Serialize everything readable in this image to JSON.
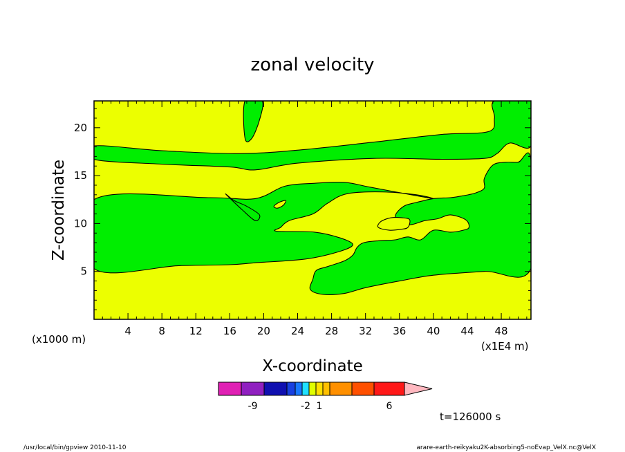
{
  "chart_data": {
    "type": "contour",
    "title": "zonal velocity",
    "xlabel": "X-coordinate",
    "ylabel": "Z-coordinate",
    "x_unit_note": "(x1E4 m)",
    "y_unit_note": "(x1000 m)",
    "xlim": [
      0,
      51.5
    ],
    "ylim": [
      0,
      22.8
    ],
    "x_ticks": [
      4,
      8,
      12,
      16,
      20,
      24,
      28,
      32,
      36,
      40,
      44,
      48
    ],
    "y_ticks": [
      5,
      10,
      15,
      20
    ],
    "time_label": "t=126000 s",
    "colorbar": {
      "tick_labels": [
        {
          "text": "-9",
          "index": 1
        },
        {
          "text": "-2",
          "index": 5
        },
        {
          "text": "1",
          "index": 7
        },
        {
          "text": "6",
          "index": 11
        }
      ],
      "colors": [
        "#e020b4",
        "#9020c0",
        "#1010b0",
        "#1840e0",
        "#1878ff",
        "#20e0ff",
        "#e0ff00",
        "#ffe000",
        "#ffc000",
        "#ff9000",
        "#ff5000",
        "#ff1818",
        "#ff8080",
        "#ffb8c0"
      ]
    },
    "region_colors": {
      "positive": "#ecff00",
      "negative": "#00ee00"
    },
    "regions": [
      {
        "sign": "negative",
        "points": [
          [
            17.8,
            22.8
          ],
          [
            19.8,
            22.8
          ],
          [
            19.5,
            20.8
          ],
          [
            18.6,
            18.9
          ],
          [
            17.8,
            18.9
          ]
        ]
      },
      {
        "sign": "negative",
        "points": [
          [
            0,
            18.1
          ],
          [
            8,
            17.6
          ],
          [
            17.2,
            17.3
          ],
          [
            24.5,
            17.7
          ],
          [
            33,
            18.5
          ],
          [
            41,
            19.3
          ],
          [
            46.5,
            19.6
          ],
          [
            47.2,
            21
          ],
          [
            47.2,
            22.8
          ],
          [
            51.5,
            22.8
          ],
          [
            51.5,
            18.1
          ],
          [
            49,
            18.4
          ],
          [
            47.5,
            17.3
          ],
          [
            46,
            16.8
          ],
          [
            41,
            16.7
          ],
          [
            33,
            16.8
          ],
          [
            24,
            16.3
          ],
          [
            19,
            15.6
          ],
          [
            16,
            15.9
          ],
          [
            8,
            16.2
          ],
          [
            0,
            16.7
          ]
        ]
      },
      {
        "sign": "negative",
        "points": [
          [
            51.5,
            16.6
          ],
          [
            50,
            16.4
          ],
          [
            48.2,
            15
          ],
          [
            47,
            14.3
          ],
          [
            48,
            13.2
          ],
          [
            51.5,
            12.6
          ]
        ]
      },
      {
        "sign": "negative",
        "points": [
          [
            0,
            12.5
          ],
          [
            13.5,
            12.7
          ],
          [
            19,
            12.6
          ],
          [
            22.5,
            13.9
          ],
          [
            26,
            14.2
          ],
          [
            29.5,
            14.3
          ],
          [
            32.5,
            13.8
          ],
          [
            38,
            12.9
          ],
          [
            40,
            12.6
          ],
          [
            38,
            13
          ],
          [
            34,
            13.3
          ],
          [
            29.8,
            13.1
          ],
          [
            27.5,
            12.1
          ],
          [
            25.8,
            11
          ],
          [
            23,
            10.3
          ],
          [
            22,
            9.6
          ],
          [
            21.5,
            9.2
          ],
          [
            26,
            9.1
          ],
          [
            29,
            8.5
          ],
          [
            30.5,
            7.8
          ],
          [
            29,
            7.1
          ],
          [
            25,
            6.3
          ],
          [
            19,
            5.9
          ],
          [
            16,
            5.7
          ],
          [
            10,
            5.6
          ],
          [
            0,
            5.3
          ]
        ]
      },
      {
        "sign": "negative",
        "points": [
          [
            15.5,
            13.1
          ],
          [
            16.3,
            12.4
          ],
          [
            17.5,
            11.4
          ],
          [
            19,
            10.3
          ],
          [
            19.5,
            10.9
          ],
          [
            18,
            11.8
          ],
          [
            16.5,
            12.4
          ]
        ]
      },
      {
        "sign": "negative",
        "points": [
          [
            26.2,
            5.1
          ],
          [
            27.5,
            5.5
          ],
          [
            29.5,
            6.1
          ],
          [
            30.5,
            6.7
          ],
          [
            31,
            7.5
          ],
          [
            31.8,
            8
          ],
          [
            33.5,
            8.2
          ],
          [
            35.5,
            8.3
          ],
          [
            37,
            8.6
          ],
          [
            38.5,
            8.3
          ],
          [
            40,
            9.3
          ],
          [
            42,
            9.1
          ],
          [
            43.5,
            9.3
          ],
          [
            44.2,
            9.6
          ],
          [
            43.8,
            10.4
          ],
          [
            42,
            10.9
          ],
          [
            40.5,
            10.5
          ],
          [
            39,
            10.3
          ],
          [
            37.5,
            9.9
          ],
          [
            36,
            9.8
          ],
          [
            35.5,
            10.8
          ],
          [
            36.5,
            11.8
          ],
          [
            38,
            12.2
          ],
          [
            40,
            12.6
          ],
          [
            42,
            12.7
          ],
          [
            43.5,
            12.9
          ],
          [
            45,
            13.2
          ],
          [
            46,
            13.7
          ],
          [
            46,
            14.7
          ],
          [
            47,
            16.1
          ],
          [
            48.5,
            16.4
          ],
          [
            50,
            16.4
          ],
          [
            51.5,
            16.6
          ],
          [
            51.5,
            5.3
          ],
          [
            46,
            5
          ],
          [
            40,
            4.6
          ],
          [
            36,
            4
          ],
          [
            32,
            3.3
          ],
          [
            29.5,
            2.7
          ],
          [
            27,
            2.6
          ],
          [
            25.5,
            3.1
          ],
          [
            25.8,
            4.2
          ]
        ]
      },
      {
        "sign": "positive",
        "points": [
          [
            33.5,
            9.6
          ],
          [
            34.8,
            9.3
          ],
          [
            36.2,
            9.4
          ],
          [
            37,
            9.6
          ],
          [
            37.2,
            10.4
          ],
          [
            36.3,
            10.6
          ],
          [
            35,
            10.6
          ],
          [
            33.8,
            10.2
          ]
        ]
      },
      {
        "sign": "positive",
        "points": [
          [
            21.2,
            11.8
          ],
          [
            21.8,
            12.2
          ],
          [
            22.6,
            12.4
          ],
          [
            22.3,
            11.9
          ],
          [
            21.6,
            11.6
          ]
        ]
      }
    ]
  },
  "footer": {
    "left": "/usr/local/bin/gpview  2010-11-10",
    "right": "arare-earth-reikyaku2K-absorbing5-noEvap_VelX.nc@VelX"
  }
}
